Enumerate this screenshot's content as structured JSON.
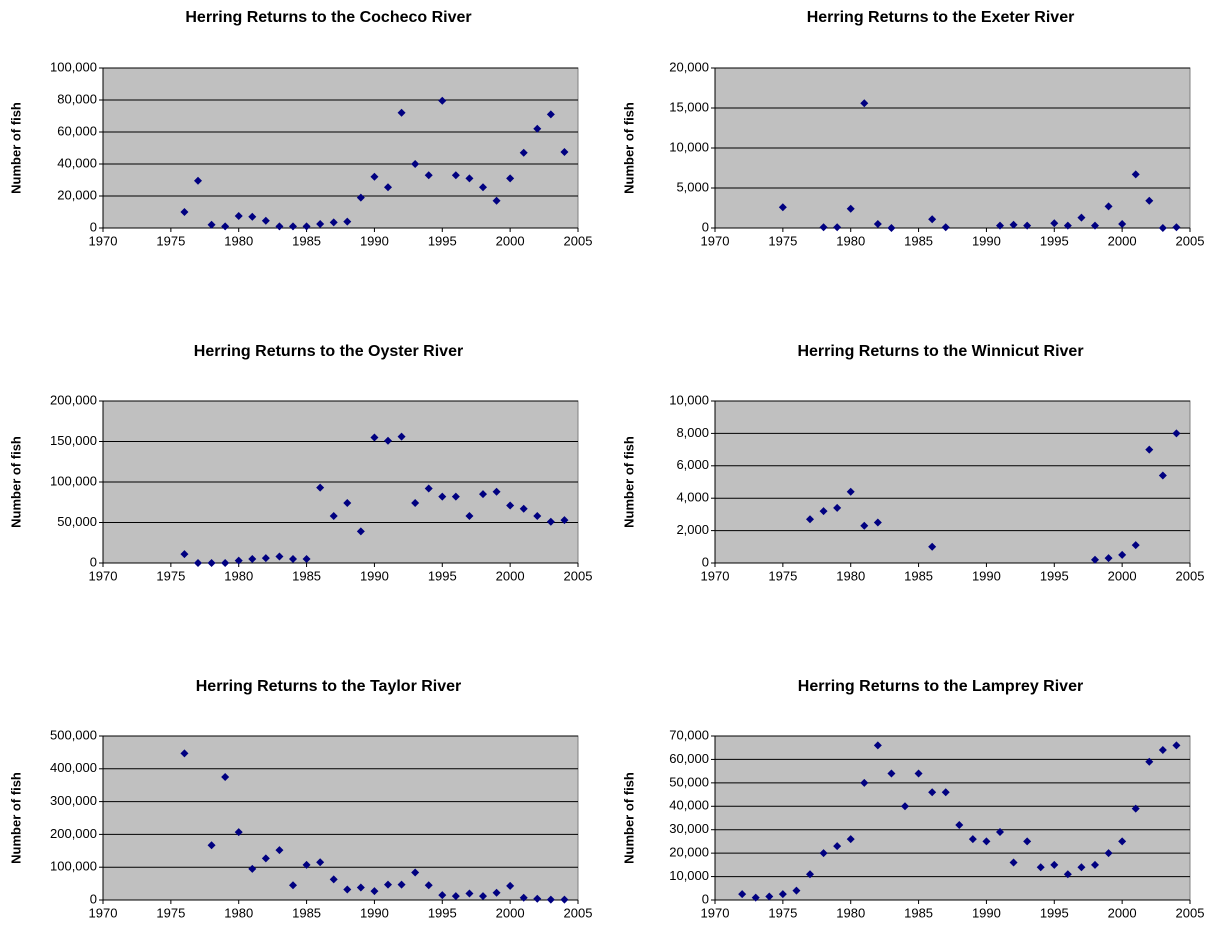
{
  "chart_data": [
    {
      "type": "scatter",
      "title": "Herring Returns to the Cocheco River",
      "y_label": "Number of fish",
      "color": "#000080",
      "x": [
        1976,
        1977,
        1978,
        1979,
        1980,
        1981,
        1982,
        1983,
        1984,
        1985,
        1986,
        1987,
        1988,
        1989,
        1990,
        1991,
        1992,
        1993,
        1994,
        1995,
        1996,
        1997,
        1998,
        1999,
        2000,
        2001,
        2002,
        2003,
        2004
      ],
      "values": [
        10000,
        29500,
        2000,
        1000,
        7500,
        7000,
        4500,
        1000,
        1000,
        1000,
        2500,
        3500,
        4000,
        19000,
        32000,
        25500,
        72000,
        40000,
        33000,
        79500,
        33000,
        31000,
        25500,
        17000,
        31000,
        47000,
        62000,
        71000,
        47500
      ],
      "xlim": [
        1970,
        2005
      ],
      "xticks": [
        1970,
        1975,
        1980,
        1985,
        1990,
        1995,
        2000,
        2005
      ],
      "ylim": [
        0,
        100000
      ],
      "yticks": [
        0,
        {
          "value": 20000,
          "label": "20,000"
        },
        {
          "value": 40000,
          "label": "40,000"
        },
        {
          "value": 60000,
          "label": "60,000"
        },
        {
          "value": 80000,
          "label": "80,000"
        },
        {
          "value": 100000,
          "label": "100,000"
        }
      ],
      "grid": true
    },
    {
      "type": "scatter",
      "title": "Herring Returns to the Exeter River",
      "y_label": "Number of fish",
      "color": "#000080",
      "x": [
        1975,
        1978,
        1979,
        1980,
        1981,
        1982,
        1983,
        1986,
        1987,
        1991,
        1992,
        1993,
        1995,
        1996,
        1997,
        1998,
        1999,
        2000,
        2001,
        2002,
        2003,
        2004
      ],
      "values": [
        2600,
        100,
        100,
        2400,
        15600,
        500,
        0,
        1100,
        100,
        300,
        400,
        300,
        600,
        300,
        1300,
        300,
        2700,
        500,
        6700,
        3400,
        0,
        100
      ],
      "xlim": [
        1970,
        2005
      ],
      "xticks": [
        1970,
        1975,
        1980,
        1985,
        1990,
        1995,
        2000,
        2005
      ],
      "ylim": [
        0,
        20000
      ],
      "yticks": [
        0,
        {
          "value": 5000,
          "label": "5,000"
        },
        {
          "value": 10000,
          "label": "10,000"
        },
        {
          "value": 15000,
          "label": "15,000"
        },
        {
          "value": 20000,
          "label": "20,000"
        }
      ],
      "grid": true
    },
    {
      "type": "scatter",
      "title": "Herring Returns to the Oyster River",
      "y_label": "Number of fish",
      "color": "#000080",
      "x": [
        1976,
        1977,
        1978,
        1979,
        1980,
        1981,
        1982,
        1983,
        1984,
        1985,
        1986,
        1987,
        1988,
        1989,
        1990,
        1991,
        1992,
        1993,
        1994,
        1995,
        1996,
        1997,
        1998,
        1999,
        2000,
        2001,
        2002,
        2003,
        2004
      ],
      "values": [
        11000,
        0,
        0,
        0,
        3000,
        5000,
        6000,
        8000,
        5000,
        5000,
        93000,
        58000,
        74000,
        39000,
        155000,
        151000,
        156000,
        74000,
        92000,
        82000,
        82000,
        58000,
        85000,
        88000,
        71000,
        67000,
        58000,
        51000,
        53000
      ],
      "xlim": [
        1970,
        2005
      ],
      "xticks": [
        1970,
        1975,
        1980,
        1985,
        1990,
        1995,
        2000,
        2005
      ],
      "ylim": [
        0,
        200000
      ],
      "yticks": [
        0,
        {
          "value": 50000,
          "label": "50,000"
        },
        {
          "value": 100000,
          "label": "100,000"
        },
        {
          "value": 150000,
          "label": "150,000"
        },
        {
          "value": 200000,
          "label": "200,000"
        }
      ],
      "grid": true
    },
    {
      "type": "scatter",
      "title": "Herring Returns to the Winnicut River",
      "y_label": "Number of fish",
      "color": "#000080",
      "x": [
        1977,
        1978,
        1979,
        1980,
        1981,
        1982,
        1986,
        1998,
        1999,
        2000,
        2001,
        2002,
        2003,
        2004
      ],
      "values": [
        2700,
        3200,
        3400,
        4400,
        2300,
        2500,
        1000,
        200,
        300,
        500,
        1100,
        7000,
        5400,
        8000
      ],
      "xlim": [
        1970,
        2005
      ],
      "xticks": [
        1970,
        1975,
        1980,
        1985,
        1990,
        1995,
        2000,
        2005
      ],
      "ylim": [
        0,
        10000
      ],
      "yticks": [
        0,
        {
          "value": 2000,
          "label": "2,000"
        },
        {
          "value": 4000,
          "label": "4,000"
        },
        {
          "value": 6000,
          "label": "6,000"
        },
        {
          "value": 8000,
          "label": "8,000"
        },
        {
          "value": 10000,
          "label": "10,000"
        }
      ],
      "grid": true
    },
    {
      "type": "scatter",
      "title": "Herring Returns to the Taylor River",
      "y_label": "Number of fish",
      "color": "#000080",
      "x": [
        1976,
        1978,
        1979,
        1980,
        1981,
        1982,
        1983,
        1984,
        1985,
        1986,
        1987,
        1988,
        1989,
        1990,
        1991,
        1992,
        1993,
        1994,
        1995,
        1996,
        1997,
        1998,
        1999,
        2000,
        2001,
        2002,
        2003,
        2004
      ],
      "values": [
        447000,
        167000,
        375000,
        207000,
        95000,
        127000,
        152000,
        45000,
        107000,
        115000,
        63000,
        32000,
        38000,
        27000,
        47000,
        47000,
        84000,
        45000,
        15000,
        12000,
        20000,
        12000,
        22000,
        43000,
        7000,
        4000,
        1000,
        1000
      ],
      "xlim": [
        1970,
        2005
      ],
      "xticks": [
        1970,
        1975,
        1980,
        1985,
        1990,
        1995,
        2000,
        2005
      ],
      "ylim": [
        0,
        500000
      ],
      "yticks": [
        0,
        {
          "value": 100000,
          "label": "100,000"
        },
        {
          "value": 200000,
          "label": "200,000"
        },
        {
          "value": 300000,
          "label": "300,000"
        },
        {
          "value": 400000,
          "label": "400,000"
        },
        {
          "value": 500000,
          "label": "500,000"
        }
      ],
      "grid": true
    },
    {
      "type": "scatter",
      "title": "Herring Returns to the Lamprey River",
      "y_label": "Number of fish",
      "color": "#000080",
      "x": [
        1972,
        1973,
        1974,
        1975,
        1976,
        1977,
        1978,
        1979,
        1980,
        1981,
        1982,
        1983,
        1984,
        1985,
        1986,
        1987,
        1988,
        1989,
        1990,
        1991,
        1992,
        1993,
        1994,
        1995,
        1996,
        1997,
        1998,
        1999,
        2000,
        2001,
        2002,
        2003,
        2004
      ],
      "values": [
        2500,
        1000,
        1500,
        2500,
        4000,
        11000,
        20000,
        23000,
        26000,
        50000,
        66000,
        54000,
        40000,
        54000,
        46000,
        46000,
        32000,
        26000,
        25000,
        29000,
        16000,
        25000,
        14000,
        15000,
        11000,
        14000,
        15000,
        20000,
        25000,
        39000,
        59000,
        64000,
        66000
      ],
      "xlim": [
        1970,
        2005
      ],
      "xticks": [
        1970,
        1975,
        1980,
        1985,
        1990,
        1995,
        2000,
        2005
      ],
      "ylim": [
        0,
        70000
      ],
      "yticks": [
        0,
        {
          "value": 10000,
          "label": "10,000"
        },
        {
          "value": 20000,
          "label": "20,000"
        },
        {
          "value": 30000,
          "label": "30,000"
        },
        {
          "value": 40000,
          "label": "40,000"
        },
        {
          "value": 50000,
          "label": "50,000"
        },
        {
          "value": 60000,
          "label": "60,000"
        },
        {
          "value": 70000,
          "label": "70,000"
        }
      ],
      "grid": true
    }
  ]
}
